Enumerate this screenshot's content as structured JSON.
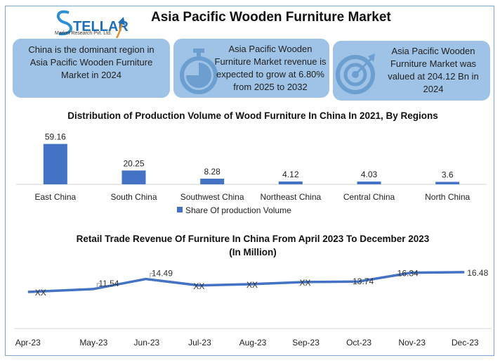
{
  "header": {
    "title": "Asia Pacific Wooden Furniture Market",
    "logo_text": "STELLAR",
    "logo_sub": "Market Research Pvt. Ltd."
  },
  "cards": [
    {
      "icon": "globe-region",
      "text": "China is the dominant region in Asia Pacific Wooden Furniture Market in 2024"
    },
    {
      "icon": "stopwatch-icon",
      "text": "Asia Pacific Wooden Furniture Market revenue is expected to grow at 6.80% from 2025 to 2032"
    },
    {
      "icon": "target-icon",
      "text": "Asia Pacific Wooden Furniture Market was valued at 204.12 Bn in 2024"
    }
  ],
  "colors": {
    "card": "#9fc3e6",
    "series": "#4472c4",
    "frame": "#7aa7d1"
  },
  "chart_data": [
    {
      "type": "bar",
      "title": "Distribution of Production Volume of Wood Furniture In China In 2021, By Regions",
      "categories": [
        "East China",
        "South China",
        "Southwest China",
        "Northeast China",
        "Central China",
        "North China"
      ],
      "series": [
        {
          "name": "Share Of production Volume",
          "values": [
            59.16,
            20.25,
            8.28,
            4.12,
            4.03,
            3.6
          ]
        }
      ],
      "data_labels": [
        "59.16",
        "20.25",
        "8.28",
        "4.12",
        "4.03",
        "3.6"
      ],
      "legend": "bottom",
      "grid": false
    },
    {
      "type": "line",
      "title": "Retail Trade Revenue Of Furniture In China From April 2023 To December 2023 (In Million)",
      "categories": [
        "Apr-23",
        "May-23",
        "Jun-23",
        "Jul-23",
        "Aug-23",
        "Sep-23",
        "Oct-23",
        "Nov-23",
        "Dec-23"
      ],
      "series": [
        {
          "values": [
            10.7,
            11.54,
            14.49,
            12.6,
            13.0,
            13.6,
            13.74,
            16.34,
            16.48
          ]
        }
      ],
      "data_labels": [
        "XX",
        "11.54",
        "14.49",
        "XX",
        "XX",
        "XX",
        "13.74",
        "16.34",
        "16.48"
      ],
      "ylim": [
        0,
        18
      ],
      "grid": false
    }
  ]
}
